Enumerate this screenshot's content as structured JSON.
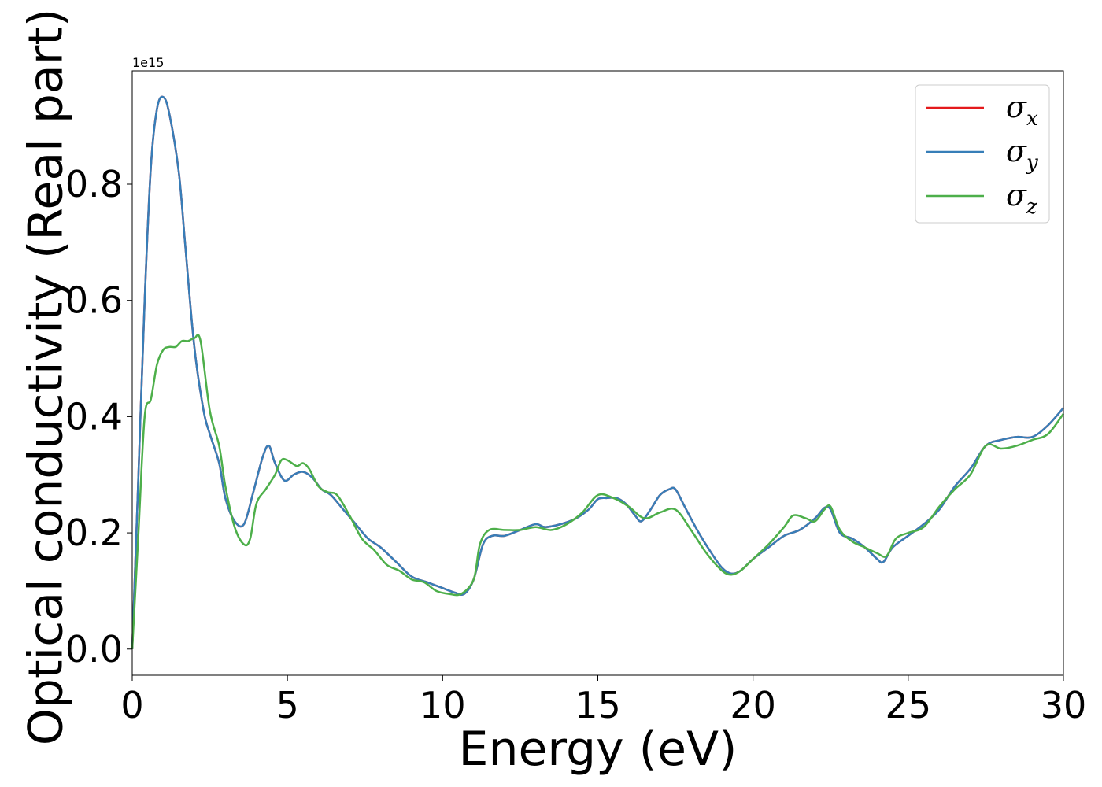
{
  "chart_data": {
    "type": "line",
    "xlabel": "Energy (eV)",
    "ylabel": "Optical conductivity (Real part)",
    "offset_text": "1e15",
    "xlim": [
      0,
      30
    ],
    "ylim": [
      -0.045,
      0.995
    ],
    "y_scale_factor": 1000000000000000.0,
    "xticks": [
      0,
      5,
      10,
      15,
      20,
      25,
      30
    ],
    "xtick_labels": [
      "0",
      "5",
      "10",
      "15",
      "20",
      "25",
      "30"
    ],
    "yticks": [
      0.0,
      0.2,
      0.4,
      0.6,
      0.8
    ],
    "ytick_labels": [
      "0.0",
      "0.2",
      "0.4",
      "0.6",
      "0.8"
    ],
    "grid": false,
    "legend_position": "top-right",
    "series": [
      {
        "name": "σx",
        "legend_base": "σ",
        "legend_sub": "x",
        "color": "#e41a1c",
        "x": [
          0,
          0.2,
          0.4,
          0.6,
          0.8,
          1.0,
          1.2,
          1.5,
          1.7,
          2.0,
          2.3,
          2.5,
          2.8,
          3.0,
          3.3,
          3.6,
          3.9,
          4.2,
          4.4,
          4.6,
          4.9,
          5.2,
          5.5,
          5.8,
          6.1,
          6.4,
          6.8,
          7.2,
          7.6,
          8.0,
          8.5,
          9.0,
          9.5,
          10.0,
          10.4,
          10.7,
          11.0,
          11.3,
          11.6,
          12.0,
          12.5,
          13.0,
          13.3,
          13.8,
          14.3,
          14.7,
          15.0,
          15.3,
          15.6,
          15.9,
          16.2,
          16.4,
          16.7,
          17.0,
          17.3,
          17.5,
          17.8,
          18.2,
          18.6,
          19.0,
          19.3,
          19.6,
          20.0,
          20.5,
          21.0,
          21.5,
          22.0,
          22.3,
          22.5,
          22.8,
          23.2,
          23.6,
          24.0,
          24.2,
          24.5,
          25.0,
          25.5,
          26.0,
          26.5,
          27.0,
          27.5,
          28.0,
          28.5,
          29.0,
          29.5,
          30.0
        ],
        "y": [
          0.0,
          0.3,
          0.6,
          0.83,
          0.93,
          0.95,
          0.92,
          0.82,
          0.7,
          0.52,
          0.41,
          0.37,
          0.32,
          0.26,
          0.22,
          0.215,
          0.27,
          0.33,
          0.35,
          0.32,
          0.29,
          0.3,
          0.305,
          0.295,
          0.275,
          0.265,
          0.24,
          0.215,
          0.19,
          0.175,
          0.15,
          0.125,
          0.115,
          0.105,
          0.097,
          0.095,
          0.12,
          0.18,
          0.195,
          0.195,
          0.205,
          0.215,
          0.21,
          0.215,
          0.225,
          0.24,
          0.258,
          0.26,
          0.26,
          0.25,
          0.23,
          0.22,
          0.24,
          0.265,
          0.275,
          0.275,
          0.245,
          0.205,
          0.17,
          0.14,
          0.13,
          0.135,
          0.155,
          0.175,
          0.195,
          0.205,
          0.225,
          0.243,
          0.24,
          0.2,
          0.19,
          0.175,
          0.155,
          0.15,
          0.175,
          0.195,
          0.215,
          0.24,
          0.28,
          0.31,
          0.35,
          0.36,
          0.365,
          0.365,
          0.385,
          0.415
        ]
      },
      {
        "name": "σy",
        "legend_base": "σ",
        "legend_sub": "y",
        "color": "#377eb8",
        "x": [
          0,
          0.2,
          0.4,
          0.6,
          0.8,
          1.0,
          1.2,
          1.5,
          1.7,
          2.0,
          2.3,
          2.5,
          2.8,
          3.0,
          3.3,
          3.6,
          3.9,
          4.2,
          4.4,
          4.6,
          4.9,
          5.2,
          5.5,
          5.8,
          6.1,
          6.4,
          6.8,
          7.2,
          7.6,
          8.0,
          8.5,
          9.0,
          9.5,
          10.0,
          10.4,
          10.7,
          11.0,
          11.3,
          11.6,
          12.0,
          12.5,
          13.0,
          13.3,
          13.8,
          14.3,
          14.7,
          15.0,
          15.3,
          15.6,
          15.9,
          16.2,
          16.4,
          16.7,
          17.0,
          17.3,
          17.5,
          17.8,
          18.2,
          18.6,
          19.0,
          19.3,
          19.6,
          20.0,
          20.5,
          21.0,
          21.5,
          22.0,
          22.3,
          22.5,
          22.8,
          23.2,
          23.6,
          24.0,
          24.2,
          24.5,
          25.0,
          25.5,
          26.0,
          26.5,
          27.0,
          27.5,
          28.0,
          28.5,
          29.0,
          29.5,
          30.0
        ],
        "y": [
          0.0,
          0.3,
          0.6,
          0.83,
          0.93,
          0.95,
          0.92,
          0.82,
          0.7,
          0.52,
          0.41,
          0.37,
          0.32,
          0.26,
          0.22,
          0.215,
          0.27,
          0.33,
          0.35,
          0.32,
          0.29,
          0.3,
          0.305,
          0.295,
          0.275,
          0.265,
          0.24,
          0.215,
          0.19,
          0.175,
          0.15,
          0.125,
          0.115,
          0.105,
          0.097,
          0.095,
          0.12,
          0.18,
          0.195,
          0.195,
          0.205,
          0.215,
          0.21,
          0.215,
          0.225,
          0.24,
          0.258,
          0.26,
          0.26,
          0.25,
          0.23,
          0.22,
          0.24,
          0.265,
          0.275,
          0.275,
          0.245,
          0.205,
          0.17,
          0.14,
          0.13,
          0.135,
          0.155,
          0.175,
          0.195,
          0.205,
          0.225,
          0.243,
          0.24,
          0.2,
          0.19,
          0.175,
          0.155,
          0.15,
          0.175,
          0.195,
          0.215,
          0.24,
          0.28,
          0.31,
          0.35,
          0.36,
          0.365,
          0.365,
          0.385,
          0.415
        ]
      },
      {
        "name": "σz",
        "legend_base": "σ",
        "legend_sub": "z",
        "color": "#4daf4a",
        "x": [
          0,
          0.2,
          0.4,
          0.6,
          0.8,
          1.0,
          1.2,
          1.4,
          1.6,
          1.8,
          2.0,
          2.2,
          2.5,
          2.8,
          3.0,
          3.3,
          3.6,
          3.8,
          4.0,
          4.3,
          4.6,
          4.8,
          5.0,
          5.3,
          5.5,
          5.7,
          6.0,
          6.3,
          6.6,
          7.0,
          7.4,
          7.8,
          8.2,
          8.6,
          9.0,
          9.4,
          9.8,
          10.2,
          10.6,
          11.0,
          11.2,
          11.5,
          12.0,
          12.5,
          13.0,
          13.5,
          14.0,
          14.5,
          15.0,
          15.5,
          16.0,
          16.5,
          17.0,
          17.5,
          18.0,
          18.5,
          19.0,
          19.3,
          19.6,
          20.0,
          20.5,
          21.0,
          21.3,
          21.7,
          22.0,
          22.3,
          22.5,
          22.8,
          23.2,
          23.6,
          24.0,
          24.3,
          24.6,
          25.0,
          25.5,
          26.0,
          26.5,
          27.0,
          27.5,
          28.0,
          28.5,
          29.0,
          29.5,
          30.0
        ],
        "y": [
          0.0,
          0.2,
          0.4,
          0.43,
          0.49,
          0.515,
          0.52,
          0.52,
          0.53,
          0.53,
          0.535,
          0.53,
          0.41,
          0.35,
          0.28,
          0.21,
          0.18,
          0.19,
          0.25,
          0.275,
          0.3,
          0.325,
          0.325,
          0.315,
          0.32,
          0.31,
          0.28,
          0.27,
          0.265,
          0.23,
          0.19,
          0.17,
          0.145,
          0.135,
          0.12,
          0.115,
          0.1,
          0.095,
          0.095,
          0.12,
          0.18,
          0.205,
          0.205,
          0.205,
          0.21,
          0.205,
          0.215,
          0.235,
          0.265,
          0.26,
          0.245,
          0.225,
          0.235,
          0.24,
          0.205,
          0.165,
          0.135,
          0.128,
          0.135,
          0.155,
          0.18,
          0.21,
          0.23,
          0.225,
          0.22,
          0.24,
          0.245,
          0.205,
          0.185,
          0.175,
          0.165,
          0.16,
          0.19,
          0.2,
          0.21,
          0.245,
          0.275,
          0.3,
          0.35,
          0.345,
          0.35,
          0.36,
          0.37,
          0.405
        ]
      }
    ]
  }
}
